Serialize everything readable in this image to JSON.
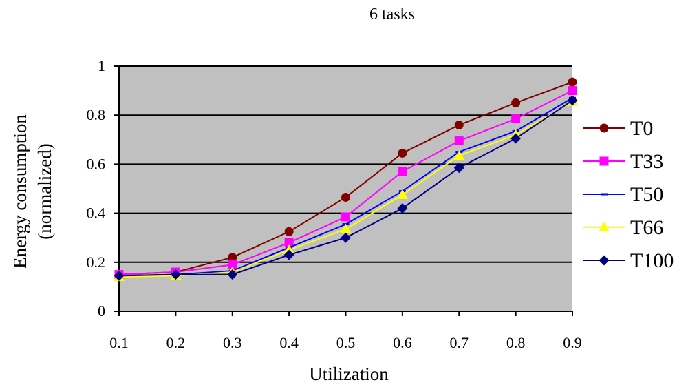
{
  "chart_data": {
    "type": "line",
    "title": "6 tasks",
    "xlabel": "Utilization",
    "ylabel_lines": [
      "Energy consumption",
      "(normalized)"
    ],
    "x": [
      0.1,
      0.2,
      0.3,
      0.4,
      0.5,
      0.6,
      0.7,
      0.8,
      0.9
    ],
    "x_tick_labels": [
      "0.1",
      "0.2",
      "0.3",
      "0.4",
      "0.5",
      "0.6",
      "0.7",
      "0.8",
      "0.9"
    ],
    "y_tick_labels": [
      "0",
      "0.2",
      "0.4",
      "0.6",
      "0.8",
      "1"
    ],
    "y_ticks": [
      0,
      0.2,
      0.4,
      0.6,
      0.8,
      1
    ],
    "xlim": [
      0.1,
      0.9
    ],
    "ylim": [
      0,
      1
    ],
    "grid": "horizontal",
    "plot_background": "#c0c0c0",
    "legend_position": "right",
    "series": [
      {
        "name": "T0",
        "color": "#800000",
        "marker": "circle",
        "values": [
          0.15,
          0.16,
          0.22,
          0.325,
          0.465,
          0.645,
          0.76,
          0.85,
          0.935
        ]
      },
      {
        "name": "T33",
        "color": "#ff00ff",
        "marker": "square",
        "values": [
          0.15,
          0.16,
          0.19,
          0.28,
          0.385,
          0.57,
          0.695,
          0.785,
          0.9
        ]
      },
      {
        "name": "T50",
        "color": "#0000ff",
        "marker": "dash",
        "values": [
          0.145,
          0.15,
          0.165,
          0.26,
          0.355,
          0.49,
          0.65,
          0.735,
          0.87
        ]
      },
      {
        "name": "T66",
        "color": "#ffff00",
        "marker": "triangle",
        "values": [
          0.14,
          0.145,
          0.16,
          0.25,
          0.335,
          0.475,
          0.635,
          0.72,
          0.855
        ]
      },
      {
        "name": "T100",
        "color": "#000080",
        "marker": "diamond",
        "values": [
          0.145,
          0.15,
          0.15,
          0.23,
          0.3,
          0.42,
          0.585,
          0.705,
          0.86
        ]
      }
    ]
  }
}
